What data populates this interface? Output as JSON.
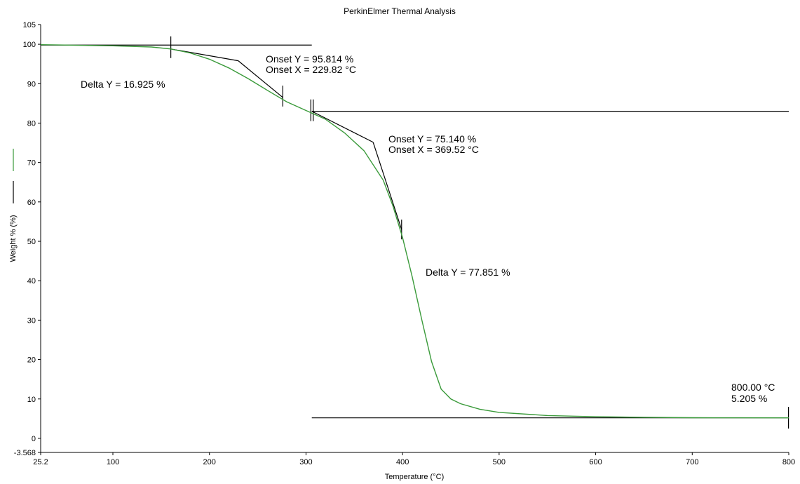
{
  "chart_data": {
    "type": "line",
    "title": "PerkinElmer Thermal Analysis",
    "xlabel": "Temperature (°C)",
    "ylabel": "Weight % (%)",
    "xlim": [
      25.2,
      800
    ],
    "ylim": [
      -3.568,
      105
    ],
    "x_ticks": [
      "25.2",
      "100",
      "200",
      "300",
      "400",
      "500",
      "600",
      "700",
      "800"
    ],
    "y_ticks": [
      "-3.568",
      "0",
      "10",
      "20",
      "30",
      "40",
      "50",
      "60",
      "70",
      "80",
      "90",
      "100",
      "105"
    ],
    "grid": false,
    "colors": {
      "curve": "#3a9a3a",
      "annotation": "#000000",
      "legend_green": "#3a9a3a",
      "legend_black": "#000000"
    },
    "series": [
      {
        "x": [
          25.2,
          50,
          100,
          140,
          160,
          180,
          200,
          220,
          240,
          260,
          280,
          300,
          320,
          340,
          360,
          380,
          390,
          400,
          410,
          420,
          430,
          440,
          450,
          460,
          480,
          500,
          550,
          600,
          650,
          700,
          750,
          800
        ],
        "y": [
          99.9,
          99.8,
          99.6,
          99.3,
          98.8,
          97.8,
          96.2,
          94.0,
          91.3,
          88.3,
          85.4,
          83.2,
          81.0,
          77.5,
          73.0,
          65.5,
          59.0,
          51.0,
          41.0,
          30.0,
          19.5,
          12.5,
          10.0,
          8.8,
          7.4,
          6.6,
          5.8,
          5.5,
          5.35,
          5.25,
          5.22,
          5.205
        ]
      }
    ],
    "annotations": {
      "delta1": "Delta Y = 16.925 %",
      "onset1_y": "Onset Y = 95.814 %",
      "onset1_x": "Onset X = 229.82 °C",
      "onset2_y": "Onset Y = 75.140 %",
      "onset2_x": "Onset X = 369.52 °C",
      "delta2": "Delta Y = 77.851 %",
      "end_temp": "800.00 °C",
      "end_weight": "5.205 %"
    },
    "step1": {
      "upper_level": 99.8,
      "lower_level": 83.0,
      "upper_x_end": 306,
      "start_x": 160,
      "end_x": 276,
      "onset_x": 229.82,
      "onset_y": 95.814
    },
    "step2": {
      "lower_level": 5.205,
      "start_x": 306,
      "end_x": 399,
      "onset_x": 369.52,
      "onset_y": 75.14
    }
  }
}
